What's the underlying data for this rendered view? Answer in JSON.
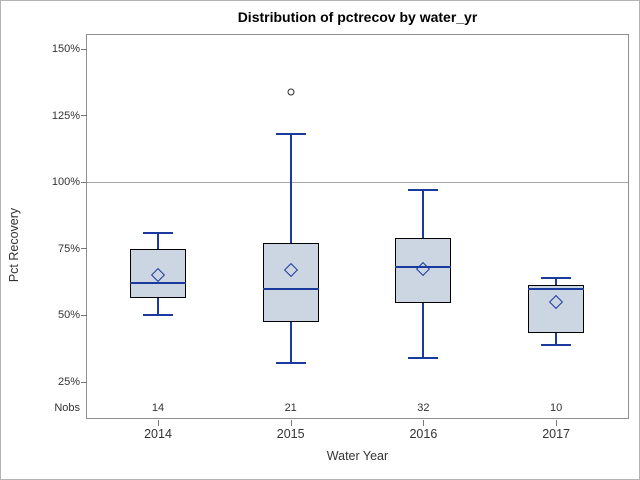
{
  "chart_data": {
    "type": "box",
    "title": "Distribution of pctrecov by water_yr",
    "xlabel": "Water Year",
    "ylabel": "Pct Recovery",
    "nobs_label": "Nobs",
    "ytick_values": [
      150,
      125,
      100,
      75,
      50,
      25
    ],
    "ytick_suffix": "%",
    "ylim": [
      11,
      154
    ],
    "reference_line": 100,
    "grid": false,
    "legend": "none",
    "series": [
      {
        "category": "2014",
        "nobs": 14,
        "whisker_low": 50,
        "q1": 56.5,
        "median": 62,
        "mean": 65,
        "q3": 75,
        "whisker_high": 81,
        "outliers": []
      },
      {
        "category": "2015",
        "nobs": 21,
        "whisker_low": 32,
        "q1": 47.5,
        "median": 60,
        "mean": 67,
        "q3": 77,
        "whisker_high": 118,
        "outliers": [
          134
        ]
      },
      {
        "category": "2016",
        "nobs": 32,
        "whisker_low": 34,
        "q1": 54.5,
        "median": 68,
        "mean": 67.5,
        "q3": 79,
        "whisker_high": 97,
        "outliers": []
      },
      {
        "category": "2017",
        "nobs": 10,
        "whisker_low": 39,
        "q1": 43.5,
        "median": 60,
        "mean": 55,
        "q3": 61.5,
        "whisker_high": 64,
        "outliers": []
      }
    ],
    "colors": {
      "box_fill": "#ccd6e3",
      "box_border": "#000000",
      "line_blue": "#1a3a9e",
      "outlier_stroke": "#2b2b2b",
      "reference_line": "#a6a6a6",
      "frame": "#8f8f8f",
      "tick": "#777777",
      "text": "#333333"
    }
  }
}
